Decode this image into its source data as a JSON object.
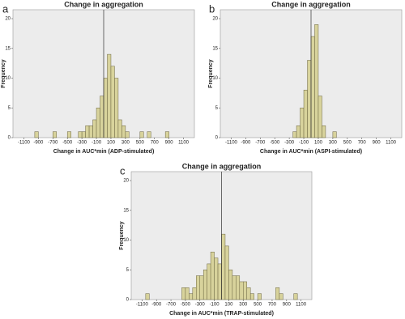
{
  "chart_data": [
    {
      "type": "histogram",
      "panel_label": "a",
      "title": "Change in aggregation",
      "x_label": "Change in AUC*min (ADP-stimulated)",
      "y_label": "Frequency",
      "bins": [
        -1100,
        -1050,
        -1000,
        -950,
        -900,
        -850,
        -800,
        -750,
        -700,
        -650,
        -600,
        -550,
        -500,
        -450,
        -400,
        -350,
        -300,
        -250,
        -200,
        -150,
        -100,
        -50,
        0,
        50,
        100,
        150,
        200,
        250,
        300,
        350,
        400,
        450,
        500,
        550,
        600,
        650,
        700,
        750,
        800,
        850,
        900,
        950,
        1000,
        1050,
        1100
      ],
      "counts": [
        0,
        0,
        0,
        1,
        0,
        0,
        0,
        0,
        1,
        0,
        0,
        0,
        1,
        0,
        0,
        1,
        1,
        2,
        2,
        3,
        5,
        7,
        10,
        14,
        12,
        10,
        3,
        2,
        1,
        0,
        0,
        0,
        1,
        0,
        1,
        0,
        0,
        0,
        0,
        1,
        0,
        0,
        0,
        0
      ],
      "color": "#d8d39c",
      "reference_x": 0,
      "xlim": [
        -1250,
        1250
      ],
      "xticks": [
        -1100,
        -900,
        -700,
        -500,
        -300,
        -100,
        100,
        300,
        500,
        700,
        900,
        1100
      ],
      "ylim": [
        0,
        21.5
      ],
      "yticks": [
        0,
        5,
        10,
        15,
        20
      ]
    },
    {
      "type": "histogram",
      "panel_label": "b",
      "title": "Change in aggregation",
      "x_label": "Change in AUC*min (ASPI-stimulated)",
      "y_label": "Frequency",
      "bins": [
        -1100,
        -1050,
        -1000,
        -950,
        -900,
        -850,
        -800,
        -750,
        -700,
        -650,
        -600,
        -550,
        -500,
        -450,
        -400,
        -350,
        -300,
        -250,
        -200,
        -150,
        -100,
        -50,
        0,
        50,
        100,
        150,
        200,
        250,
        300,
        350,
        400,
        450,
        500,
        550,
        600,
        650,
        700,
        750,
        800,
        850,
        900,
        950,
        1000,
        1050,
        1100
      ],
      "counts": [
        0,
        0,
        0,
        0,
        0,
        0,
        0,
        0,
        0,
        0,
        0,
        0,
        0,
        0,
        0,
        0,
        0,
        1,
        2,
        5,
        8,
        13,
        17,
        19,
        7,
        2,
        0,
        0,
        1,
        0,
        0,
        0,
        0,
        0,
        0,
        0,
        0,
        0,
        0,
        0,
        0,
        0,
        0,
        0
      ],
      "color": "#d8d39c",
      "reference_x": 0,
      "xlim": [
        -1250,
        1250
      ],
      "xticks": [
        -1100,
        -900,
        -700,
        -500,
        -300,
        -100,
        100,
        300,
        500,
        700,
        900,
        1100
      ],
      "ylim": [
        0,
        21.5
      ],
      "yticks": [
        0,
        5,
        10,
        15,
        20
      ]
    },
    {
      "type": "histogram",
      "panel_label": "c",
      "title": "Change in aggregation",
      "x_label": "Change in AUC*min (TRAP-stimulated)",
      "y_label": "Frequency",
      "bins": [
        -1100,
        -1050,
        -1000,
        -950,
        -900,
        -850,
        -800,
        -750,
        -700,
        -650,
        -600,
        -550,
        -500,
        -450,
        -400,
        -350,
        -300,
        -250,
        -200,
        -150,
        -100,
        -50,
        0,
        50,
        100,
        150,
        200,
        250,
        300,
        350,
        400,
        450,
        500,
        550,
        600,
        650,
        700,
        750,
        800,
        850,
        900,
        950,
        1000,
        1050,
        1100
      ],
      "counts": [
        0,
        1,
        0,
        0,
        0,
        0,
        0,
        0,
        0,
        0,
        0,
        2,
        2,
        1,
        2,
        4,
        4,
        5,
        6,
        8,
        7,
        6,
        11,
        9,
        5,
        4,
        4,
        3,
        3,
        2,
        1,
        0,
        1,
        0,
        0,
        0,
        0,
        2,
        1,
        0,
        0,
        0,
        1,
        0
      ],
      "color": "#d8d39c",
      "reference_x": 0,
      "xlim": [
        -1250,
        1250
      ],
      "xticks": [
        -1100,
        -900,
        -700,
        -500,
        -300,
        -100,
        100,
        300,
        500,
        700,
        900,
        1100
      ],
      "ylim": [
        0,
        21.5
      ],
      "yticks": [
        0,
        5,
        10,
        15,
        20
      ]
    }
  ]
}
